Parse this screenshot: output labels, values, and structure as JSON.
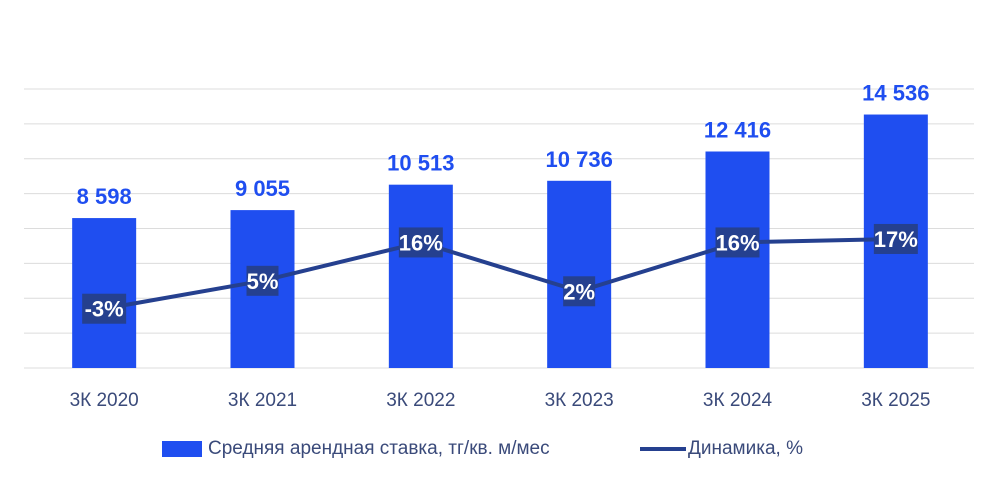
{
  "colors": {
    "bar": "#1f4ef0",
    "line": "#25408f",
    "grid": "#dcdcdc",
    "tick_text": "#3a4a7a",
    "bar_label_text": "#1f4ef0",
    "pct_label_bg": "#25408f"
  },
  "chart_data": {
    "type": "bar",
    "categories": [
      "3К 2020",
      "3К 2021",
      "3К 2022",
      "3К 2023",
      "3К 2024",
      "3К 2025"
    ],
    "series": [
      {
        "name": "Средняя арендная ставка, тг/кв. м/мес",
        "type": "bar",
        "values": [
          8598,
          9055,
          10513,
          10736,
          12416,
          14536
        ],
        "labels": [
          "8 598",
          "9 055",
          "10 513",
          "10 736",
          "12 416",
          "14 536"
        ]
      },
      {
        "name": "Динамика, %",
        "type": "line",
        "values": [
          -3,
          5,
          16,
          2,
          16,
          17
        ],
        "labels": [
          "-3%",
          "5%",
          "16%",
          "2%",
          "16%",
          "17%"
        ]
      }
    ],
    "ylim": [
      0,
      16000
    ],
    "y2lim": [
      -20,
      60
    ],
    "grid": true,
    "legend_position": "bottom"
  }
}
